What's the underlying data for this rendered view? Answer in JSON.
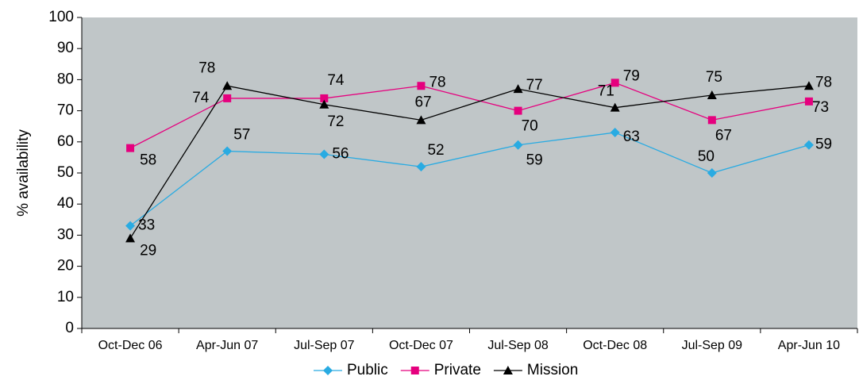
{
  "chart_data": {
    "type": "line",
    "y_label": "% availability",
    "categories": [
      "Oct-Dec 06",
      "Apr-Jun 07",
      "Jul-Sep 07",
      "Oct-Dec 07",
      "Jul-Sep 08",
      "Oct-Dec 08",
      "Jul-Sep 09",
      "Apr-Jun 10"
    ],
    "series": [
      {
        "name": "Public",
        "color": "#29abe2",
        "marker": "diamond",
        "values": [
          33,
          57,
          56,
          52,
          59,
          63,
          50,
          59
        ]
      },
      {
        "name": "Private",
        "color": "#e5007e",
        "marker": "square",
        "values": [
          58,
          74,
          74,
          78,
          70,
          79,
          67,
          73
        ]
      },
      {
        "name": "Mission",
        "color": "#000000",
        "marker": "triangle",
        "values": [
          29,
          78,
          72,
          67,
          77,
          71,
          75,
          78
        ]
      }
    ],
    "ylim": [
      0,
      100
    ],
    "yticks": [
      0,
      10,
      20,
      30,
      40,
      50,
      60,
      70,
      80,
      90,
      100
    ],
    "legend": "bottom",
    "background": "#c0c6c8"
  }
}
